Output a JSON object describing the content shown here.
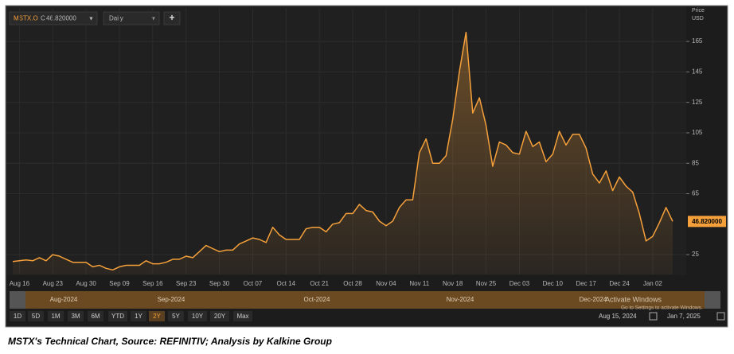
{
  "toolbar": {
    "ticker": "MSTX.O",
    "close_prefix": "C",
    "interval": "Daily",
    "add": "+"
  },
  "chart_data": {
    "type": "line",
    "y_axis_label": "Price",
    "y_axis_unit": "USD",
    "categories": [
      null,
      "Aug 16",
      null,
      null,
      null,
      null,
      "Aug 23",
      null,
      null,
      null,
      null,
      "Aug 30",
      null,
      null,
      null,
      null,
      "Sep 09",
      null,
      null,
      null,
      null,
      "Sep 16",
      null,
      null,
      null,
      null,
      "Sep 23",
      null,
      null,
      null,
      null,
      "Sep 30",
      null,
      null,
      null,
      null,
      "Oct 07",
      null,
      null,
      null,
      null,
      "Oct 14",
      null,
      null,
      null,
      null,
      "Oct 21",
      null,
      null,
      null,
      null,
      "Oct 28",
      null,
      null,
      null,
      null,
      "Nov 04",
      null,
      null,
      null,
      null,
      "Nov 11",
      null,
      null,
      null,
      null,
      "Nov 18",
      null,
      null,
      null,
      null,
      "Nov 25",
      null,
      null,
      null,
      null,
      "Dec 03",
      null,
      null,
      null,
      null,
      "Dec 10",
      null,
      null,
      null,
      null,
      "Dec 17",
      null,
      null,
      null,
      null,
      "Dec 24",
      null,
      null,
      null,
      null,
      "Jan 02",
      null,
      null,
      null
    ],
    "values": [
      20.5,
      21,
      21.5,
      21,
      23,
      21,
      25,
      24,
      22,
      20,
      20,
      20,
      17,
      18,
      16,
      15,
      17,
      18,
      18,
      18,
      21,
      19,
      19,
      20,
      22,
      22,
      24,
      23,
      27,
      31,
      29,
      27,
      28,
      28,
      32,
      34,
      36,
      35,
      33,
      43,
      38,
      35,
      35,
      35,
      42,
      43,
      43,
      40,
      45,
      46,
      52,
      52,
      58,
      54,
      53,
      47,
      44,
      47,
      56,
      61,
      61,
      92,
      101,
      85,
      85,
      90,
      114,
      145,
      171,
      118,
      128,
      110,
      83,
      99,
      97,
      92,
      91,
      106,
      96,
      99,
      86,
      91,
      106,
      97,
      104,
      104,
      95,
      78,
      72,
      80,
      67,
      76,
      70,
      66,
      52,
      34,
      37,
      46,
      56,
      46.82
    ],
    "color": "#f5a03a",
    "ylim": [
      12,
      187
    ],
    "yticks": [
      25,
      65,
      85,
      105,
      125,
      145,
      165
    ],
    "grid": true,
    "last_price": {
      "value": 46.82,
      "label": "46.820000"
    }
  },
  "navigator": {
    "months": [
      "Aug-2024",
      "Sep-2024",
      "Oct-2024",
      "Nov-2024",
      "Dec-2024"
    ]
  },
  "watermark": {
    "line1": "Activate Windows",
    "line2": "Go to Settings to activate Windows."
  },
  "range_bar": {
    "buttons": [
      {
        "label": "1D"
      },
      {
        "label": "5D"
      },
      {
        "label": "1M"
      },
      {
        "label": "3M"
      },
      {
        "label": "6M"
      },
      {
        "label": "YTD"
      },
      {
        "label": "1Y"
      },
      {
        "label": "2Y",
        "selected": true
      },
      {
        "label": "5Y"
      },
      {
        "label": "10Y"
      },
      {
        "label": "20Y"
      },
      {
        "label": "Max"
      }
    ],
    "start": "Aug 15, 2024",
    "end": "Jan 7, 2025"
  },
  "caption": "MSTX's Technical Chart, Source: REFINITIV; Analysis by Kalkine Group"
}
